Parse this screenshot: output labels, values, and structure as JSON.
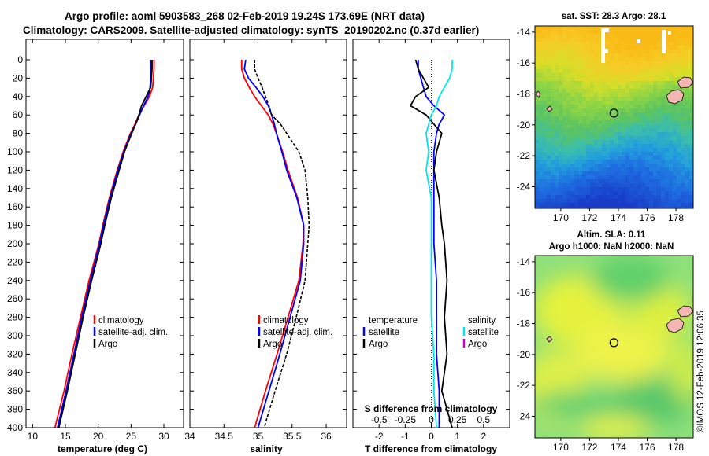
{
  "title": {
    "line1": "Argo profile: aoml 5903583_268 02-Feb-2019 19.24S 173.69E (NRT data)",
    "line2": "Climatology: CARS2009. Satellite-adjusted climatology: synTS_20190202.nc (0.37d earlier)"
  },
  "colors": {
    "climatology": "#ff0000",
    "satellite": "#0000ff",
    "argo": "#000000",
    "satellite_salinity": "#00e5ee",
    "argo_salinity": "#cc00cc",
    "land": "#f4b6b2"
  },
  "chart_data": [
    {
      "id": "temperature",
      "type": "line",
      "xlabel": "temperature (deg C)",
      "xlim": [
        9,
        33
      ],
      "xticks": [
        10,
        15,
        20,
        25,
        30
      ],
      "ylim": [
        0,
        400
      ],
      "yticks": [
        0,
        20,
        40,
        60,
        80,
        100,
        120,
        140,
        160,
        180,
        200,
        220,
        240,
        260,
        280,
        300,
        320,
        340,
        360,
        380,
        400
      ],
      "legend": [
        "climatology",
        "satellite-adj. clim.",
        "Argo"
      ],
      "depth": [
        0,
        10,
        20,
        30,
        40,
        50,
        60,
        70,
        80,
        100,
        120,
        150,
        180,
        200,
        240,
        280,
        320,
        360,
        400
      ],
      "series": [
        {
          "name": "climatology",
          "color": "#ff0000",
          "dash": "",
          "values": [
            28.5,
            28.5,
            28.4,
            28.3,
            27.8,
            27.0,
            26.2,
            25.6,
            24.9,
            23.8,
            22.9,
            21.7,
            20.7,
            20.1,
            18.6,
            17.3,
            16.0,
            14.8,
            13.4
          ]
        },
        {
          "name": "satellite",
          "color": "#0000ff",
          "dash": "",
          "values": [
            28.0,
            28.0,
            28.0,
            27.9,
            27.6,
            26.9,
            26.3,
            25.7,
            25.0,
            23.9,
            23.0,
            21.8,
            20.8,
            20.2,
            18.8,
            17.5,
            16.3,
            15.1,
            13.8
          ]
        },
        {
          "name": "Argo",
          "color": "#000000",
          "dash": "",
          "values": [
            28.2,
            28.2,
            28.1,
            28.0,
            27.3,
            26.6,
            26.2,
            25.7,
            25.1,
            24.0,
            23.2,
            22.0,
            21.0,
            20.4,
            19.0,
            17.7,
            16.5,
            15.3,
            14.0
          ]
        }
      ]
    },
    {
      "id": "salinity",
      "type": "line",
      "xlabel": "salinity",
      "xlim": [
        34,
        36.3
      ],
      "xticks": [
        34,
        34.5,
        35,
        35.5,
        36
      ],
      "ylim": [
        0,
        400
      ],
      "legend": [
        "climatology",
        "satellite-adj. clim.",
        "Argo"
      ],
      "depth": [
        0,
        10,
        20,
        30,
        40,
        50,
        60,
        70,
        80,
        100,
        120,
        150,
        180,
        200,
        240,
        280,
        320,
        360,
        400
      ],
      "series": [
        {
          "name": "climatology",
          "color": "#ff0000",
          "dash": "",
          "values": [
            34.76,
            34.76,
            34.8,
            34.87,
            34.95,
            35.05,
            35.15,
            35.22,
            35.27,
            35.36,
            35.44,
            35.58,
            35.67,
            35.66,
            35.6,
            35.44,
            35.28,
            35.11,
            34.95
          ]
        },
        {
          "name": "satellite",
          "color": "#0000ff",
          "dash": "",
          "values": [
            34.82,
            34.8,
            34.86,
            34.97,
            35.07,
            35.15,
            35.2,
            35.24,
            35.27,
            35.35,
            35.42,
            35.57,
            35.67,
            35.67,
            35.62,
            35.47,
            35.32,
            35.16,
            35.0
          ]
        },
        {
          "name": "Argo",
          "color": "#000000",
          "dash": "4,2",
          "values": [
            34.95,
            34.95,
            35.0,
            35.06,
            35.11,
            35.16,
            35.2,
            35.33,
            35.42,
            35.6,
            35.69,
            35.73,
            35.75,
            35.73,
            35.69,
            35.56,
            35.42,
            35.25,
            35.09
          ]
        }
      ]
    },
    {
      "id": "difference",
      "type": "line",
      "xlabel": "T difference from climatology",
      "xlabel_top": "S difference from climatology",
      "xlim": [
        -3,
        3
      ],
      "xticks": [
        -2,
        -1,
        0,
        1,
        2
      ],
      "xticks_top": [
        "-0.5",
        "-0.25",
        "0",
        "0.25",
        "0.5"
      ],
      "xticks_top_pos": [
        -2,
        -1,
        0,
        1,
        2
      ],
      "ylim": [
        0,
        400
      ],
      "legend_left_title": "temperature",
      "legend_right_title": "salinity",
      "legend_left": [
        "satellite",
        "Argo"
      ],
      "legend_right": [
        "satellite",
        "Argo"
      ],
      "depth": [
        0,
        10,
        20,
        30,
        40,
        50,
        60,
        70,
        80,
        100,
        120,
        150,
        180,
        200,
        240,
        280,
        320,
        360,
        400
      ],
      "series": [
        {
          "name": "T satellite",
          "color": "#0000ff",
          "dash": "",
          "values": [
            -0.5,
            -0.5,
            -0.4,
            -0.3,
            -0.2,
            0.1,
            0.5,
            0.3,
            0.2,
            0.1,
            0.1,
            0.1,
            0.1,
            0.1,
            0.2,
            0.2,
            0.2,
            0.3,
            0.3
          ]
        },
        {
          "name": "T Argo",
          "color": "#000000",
          "dash": "",
          "values": [
            -0.6,
            -0.5,
            -0.3,
            -0.1,
            -0.6,
            -0.8,
            -0.2,
            0.1,
            0.4,
            0.2,
            0.1,
            0.3,
            0.4,
            0.5,
            0.6,
            0.5,
            0.6,
            0.4,
            0.8
          ]
        },
        {
          "name": "S satellite",
          "color": "#00e5ee",
          "dash": "",
          "values": [
            0.8,
            0.8,
            0.7,
            0.5,
            0.3,
            0.2,
            0.0,
            -0.1,
            -0.2,
            -0.1,
            -0.2,
            0.0,
            0.0,
            0.0,
            0.0,
            0.0,
            0.1,
            0.1,
            0.2
          ]
        }
      ]
    },
    {
      "id": "sst-map",
      "type": "heatmap",
      "title": "sat. SST: 28.3 Argo: 28.1",
      "xlim": [
        168.2,
        179.2
      ],
      "xticks": [
        170,
        172,
        174,
        176,
        178
      ],
      "ylim": [
        -25.4,
        -13.6
      ],
      "yticks": [
        -14,
        -16,
        -18,
        -20,
        -22,
        -24
      ],
      "argo_position": [
        173.69,
        -19.24
      ]
    },
    {
      "id": "sla-map",
      "type": "heatmap",
      "title": "Altim. SLA: 0.11",
      "title2": "Argo h1000: NaN h2000: NaN",
      "xlim": [
        168.2,
        179.2
      ],
      "xticks": [
        170,
        172,
        174,
        176,
        178
      ],
      "ylim": [
        -25.4,
        -13.6
      ],
      "yticks": [
        -14,
        -16,
        -18,
        -20,
        -22,
        -24
      ],
      "argo_position": [
        173.69,
        -19.24
      ]
    }
  ],
  "footer": "©IMOS 12-Feb-2019 12:06:35"
}
